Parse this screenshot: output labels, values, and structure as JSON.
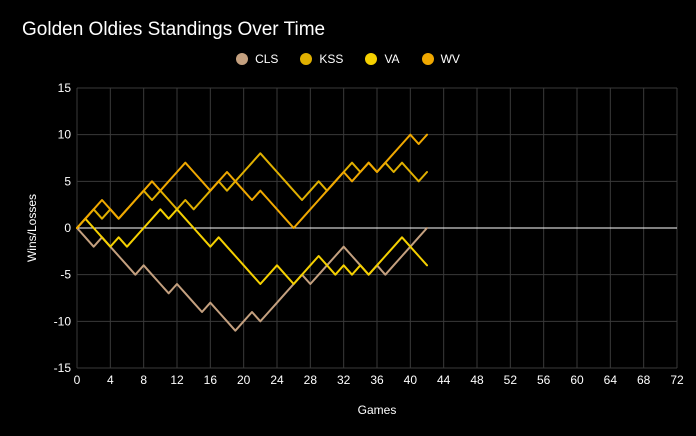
{
  "chart_data": {
    "type": "line",
    "title": "Golden Oldies Standings Over Time",
    "xlabel": "Games",
    "ylabel": "Wins/Losses",
    "xlim": [
      0,
      72
    ],
    "ylim": [
      -15,
      15
    ],
    "xticks": [
      0,
      4,
      8,
      12,
      16,
      20,
      24,
      28,
      32,
      36,
      40,
      44,
      48,
      52,
      56,
      60,
      64,
      68,
      72
    ],
    "yticks": [
      15,
      10,
      5,
      0,
      -5,
      -10,
      -15
    ],
    "legend_position": "top",
    "series": [
      {
        "name": "CLS",
        "color": "#c4a07f",
        "values": [
          0,
          -1,
          -2,
          -1,
          -2,
          -3,
          -4,
          -5,
          -4,
          -5,
          -6,
          -7,
          -6,
          -7,
          -8,
          -9,
          -8,
          -9,
          -10,
          -11,
          -10,
          -9,
          -10,
          -9,
          -8,
          -7,
          -6,
          -5,
          -6,
          -5,
          -4,
          -3,
          -2,
          -3,
          -4,
          -5,
          -4,
          -5,
          -4,
          -3,
          -2,
          -1,
          0
        ]
      },
      {
        "name": "KSS",
        "color": "#e0b000",
        "values": [
          0,
          1,
          2,
          1,
          2,
          1,
          2,
          3,
          4,
          3,
          4,
          3,
          2,
          3,
          2,
          3,
          4,
          5,
          4,
          5,
          6,
          7,
          8,
          7,
          6,
          5,
          4,
          3,
          4,
          5,
          4,
          5,
          6,
          7,
          6,
          7,
          6,
          7,
          6,
          7,
          6,
          5,
          6
        ]
      },
      {
        "name": "VA",
        "color": "#f5d000",
        "values": [
          0,
          1,
          0,
          -1,
          -2,
          -1,
          -2,
          -1,
          0,
          1,
          2,
          1,
          2,
          1,
          0,
          -1,
          -2,
          -1,
          -2,
          -3,
          -4,
          -5,
          -6,
          -5,
          -4,
          -5,
          -6,
          -5,
          -4,
          -3,
          -4,
          -5,
          -4,
          -5,
          -4,
          -5,
          -4,
          -3,
          -2,
          -1,
          -2,
          -3,
          -4
        ]
      },
      {
        "name": "WV",
        "color": "#f0a800",
        "values": [
          0,
          1,
          2,
          3,
          2,
          1,
          2,
          3,
          4,
          5,
          4,
          5,
          6,
          7,
          6,
          5,
          4,
          5,
          6,
          5,
          4,
          3,
          4,
          3,
          2,
          1,
          0,
          1,
          2,
          3,
          4,
          5,
          6,
          5,
          6,
          7,
          6,
          7,
          8,
          9,
          10,
          9,
          10
        ]
      }
    ]
  }
}
